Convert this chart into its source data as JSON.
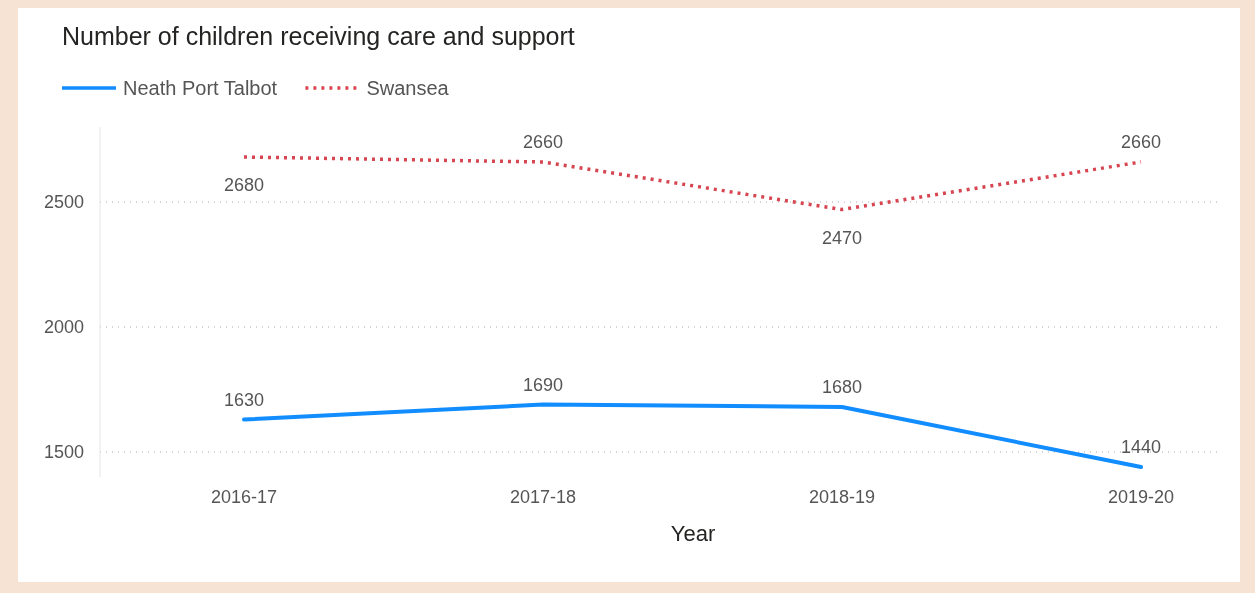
{
  "chart_data": {
    "type": "line",
    "title": "Number of children receiving care and support",
    "xlabel": "Year",
    "categories": [
      "2016-17",
      "2017-18",
      "2018-19",
      "2019-20"
    ],
    "series": [
      {
        "name": "Neath Port Talbot",
        "color": "#118dff",
        "line_style": "solid",
        "values": [
          1630,
          1690,
          1680,
          1440
        ]
      },
      {
        "name": "Swansea",
        "color": "#d64550",
        "line_style": "dotted",
        "values": [
          2680,
          2660,
          2470,
          2660
        ]
      }
    ],
    "ylim": [
      1400,
      2800
    ],
    "yticks": [
      1500,
      2000,
      2500
    ],
    "grid": "y",
    "legend": "top left",
    "data_labels": true,
    "marker": "none"
  }
}
